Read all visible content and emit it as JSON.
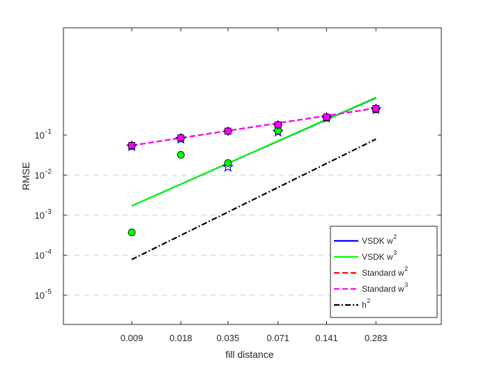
{
  "chart_data": {
    "type": "scatter",
    "title": "",
    "xlabel": "fill distance",
    "ylabel": "RMSE",
    "x_scale": "log",
    "y_scale": "log",
    "x_ticks": [
      0.009,
      0.018,
      0.035,
      0.071,
      0.141,
      0.283
    ],
    "x_tick_labels": [
      "0.009",
      "0.018",
      "0.035",
      "0.071",
      "0.141",
      "0.283"
    ],
    "y_ticks": [
      1e-05,
      0.0001,
      0.001,
      0.01,
      0.1
    ],
    "y_tick_labels": [
      {
        "base": "10",
        "exp": "-5"
      },
      {
        "base": "10",
        "exp": "-4"
      },
      {
        "base": "10",
        "exp": "-3"
      },
      {
        "base": "10",
        "exp": "-2"
      },
      {
        "base": "10",
        "exp": "-1"
      }
    ],
    "gridlines_y": [
      1e-05,
      0.0001,
      0.001,
      0.01
    ],
    "legend_position": "bottom-right",
    "fit_lines": [
      {
        "series": "VSDK w2",
        "color": "#0000ff",
        "style": "solid",
        "x": [
          0.009,
          0.283
        ],
        "y": [
          0.0017,
          0.85
        ]
      },
      {
        "series": "VSDK w3",
        "color": "#00ff00",
        "style": "solid",
        "x": [
          0.009,
          0.283
        ],
        "y": [
          0.0017,
          0.87
        ]
      },
      {
        "series": "Standard w2",
        "color": "#ff0000",
        "style": "dashed",
        "x": [
          0.009,
          0.283
        ],
        "y": [
          0.055,
          0.47
        ]
      },
      {
        "series": "Standard w3",
        "color": "#ff00ff",
        "style": "dashed",
        "x": [
          0.009,
          0.283
        ],
        "y": [
          0.055,
          0.47
        ]
      },
      {
        "series": "h2",
        "color": "#000000",
        "style": "dashdot",
        "x": [
          0.009,
          0.283
        ],
        "y": [
          7.8e-05,
          0.079
        ]
      }
    ],
    "markers": [
      {
        "shape": "star",
        "color": "#0000ff",
        "x": [
          0.009,
          0.018,
          0.035,
          0.071,
          0.141,
          0.283
        ],
        "y": [
          0.052,
          0.08,
          0.016,
          0.12,
          0.27,
          0.44
        ]
      },
      {
        "shape": "circle",
        "color": "#00ff00",
        "x": [
          0.009,
          0.018,
          0.035,
          0.071,
          0.141,
          0.283
        ],
        "y": [
          0.00037,
          0.032,
          0.02,
          0.13,
          0.27,
          0.44
        ]
      },
      {
        "shape": "diamond",
        "color": "#ff0000",
        "x": [
          0.009,
          0.018,
          0.035,
          0.071,
          0.141,
          0.283
        ],
        "y": [
          0.055,
          0.085,
          0.125,
          0.18,
          0.28,
          0.46
        ]
      },
      {
        "shape": "square",
        "color": "#ff00ff",
        "x": [
          0.009,
          0.018,
          0.035,
          0.071,
          0.141,
          0.283
        ],
        "y": [
          0.055,
          0.085,
          0.125,
          0.18,
          0.28,
          0.46
        ]
      }
    ],
    "legend": [
      {
        "text": "VSDK w",
        "sup": "2",
        "color": "#0000ff",
        "style": "solid"
      },
      {
        "text": "VSDK w",
        "sup": "3",
        "color": "#00ff00",
        "style": "solid"
      },
      {
        "text": "Standard w",
        "sup": "2",
        "color": "#ff0000",
        "style": "dashed"
      },
      {
        "text": "Standard w",
        "sup": "3",
        "color": "#ff00ff",
        "style": "dashed"
      },
      {
        "text": "h",
        "sup": "2",
        "color": "#000000",
        "style": "dashdot"
      }
    ]
  }
}
